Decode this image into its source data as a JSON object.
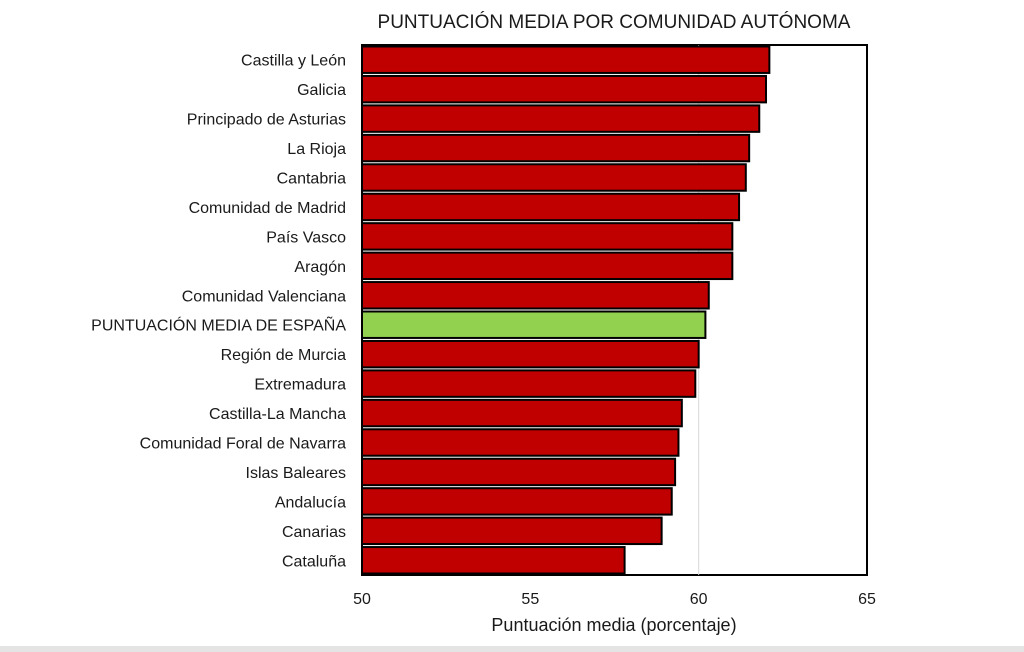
{
  "chart_data": {
    "type": "bar",
    "orientation": "horizontal",
    "title": "PUNTUACIÓN MEDIA POR COMUNIDAD AUTÓNOMA",
    "xlabel": "Puntuación media (porcentaje)",
    "ylabel": "",
    "xlim": [
      50,
      65
    ],
    "xticks": [
      50,
      55,
      60,
      65
    ],
    "grid": "vertical at 60",
    "legend": "none",
    "categories": [
      "Castilla y León",
      "Galicia",
      "Principado de Asturias",
      "La Rioja",
      "Cantabria",
      "Comunidad de Madrid",
      "País Vasco",
      "Aragón",
      "Comunidad Valenciana",
      "PUNTUACIÓN MEDIA DE ESPAÑA",
      "Región de Murcia",
      "Extremadura",
      "Castilla-La Mancha",
      "Comunidad Foral de Navarra",
      "Islas Baleares",
      "Andalucía",
      "Canarias",
      "Cataluña"
    ],
    "values": [
      62.1,
      62.0,
      61.8,
      61.5,
      61.4,
      61.2,
      61.0,
      61.0,
      60.3,
      60.2,
      60.0,
      59.9,
      59.5,
      59.4,
      59.3,
      59.2,
      58.9,
      57.8
    ],
    "highlight_index": 9,
    "colors": {
      "bar": "#c00000",
      "highlight": "#92d050",
      "outline": "#000000",
      "gridline": "#d9d9d9"
    }
  }
}
